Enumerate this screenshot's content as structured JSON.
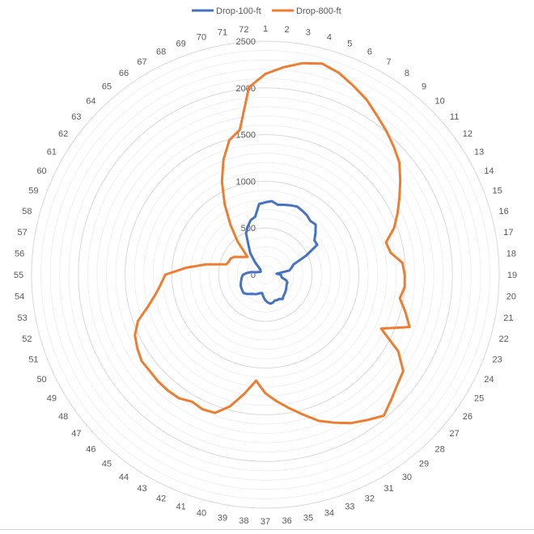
{
  "chart_data": {
    "type": "radar",
    "categories": [
      "1",
      "2",
      "3",
      "4",
      "5",
      "6",
      "7",
      "8",
      "9",
      "10",
      "11",
      "12",
      "13",
      "14",
      "15",
      "16",
      "17",
      "18",
      "19",
      "20",
      "21",
      "22",
      "23",
      "24",
      "25",
      "26",
      "27",
      "28",
      "29",
      "30",
      "31",
      "32",
      "33",
      "34",
      "35",
      "36",
      "37",
      "38",
      "39",
      "40",
      "41",
      "42",
      "43",
      "44",
      "45",
      "46",
      "47",
      "48",
      "49",
      "50",
      "51",
      "52",
      "53",
      "54",
      "55",
      "56",
      "57",
      "58",
      "59",
      "60",
      "61",
      "62",
      "63",
      "64",
      "65",
      "66",
      "67",
      "68",
      "69",
      "70",
      "71",
      "72"
    ],
    "rlim": [
      0,
      2500
    ],
    "r_ticks": [
      0,
      500,
      1000,
      1500,
      2000,
      2500
    ],
    "minor_grid_step": 100,
    "grid": true,
    "legend_position": "top",
    "series": [
      {
        "name": "Drop-100-ft",
        "color": "#4472c4",
        "values": [
          775,
          790,
          760,
          775,
          790,
          805,
          790,
          775,
          750,
          760,
          700,
          640,
          640,
          480,
          320,
          290,
          260,
          120,
          165,
          170,
          180,
          230,
          250,
          250,
          260,
          270,
          280,
          290,
          300,
          320,
          300,
          300,
          295,
          310,
          315,
          300,
          275,
          240,
          200,
          205,
          215,
          230,
          240,
          250,
          270,
          290,
          305,
          300,
          295,
          290,
          280,
          270,
          260,
          250,
          240,
          200,
          160,
          100,
          80,
          70,
          60,
          60,
          70,
          75,
          170,
          280,
          360,
          490,
          550,
          605,
          630,
          760
        ]
      },
      {
        "name": "Drop-800-ft",
        "color": "#ed7d31",
        "values": [
          2150,
          2230,
          2300,
          2340,
          2300,
          2230,
          2165,
          2080,
          2010,
          1940,
          1870,
          1760,
          1655,
          1560,
          1465,
          1335,
          1360,
          1470,
          1490,
          1495,
          1460,
          1550,
          1640,
          1365,
          1640,
          1800,
          1840,
          1900,
          1970,
          1900,
          1835,
          1750,
          1665,
          1550,
          1450,
          1360,
          1270,
          1140,
          1295,
          1460,
          1575,
          1590,
          1570,
          1615,
          1620,
          1620,
          1610,
          1615,
          1580,
          1540,
          1450,
          1295,
          1190,
          1120,
          1070,
          850,
          640,
          430,
          415,
          410,
          380,
          330,
          295,
          270,
          460,
          650,
          870,
          1100,
          1310,
          1490,
          1575,
          2015
        ]
      }
    ]
  }
}
